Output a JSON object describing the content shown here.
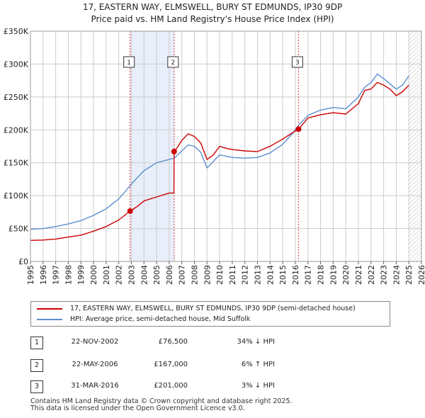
{
  "title_line1": "17, EASTERN WAY, ELMSWELL, BURY ST EDMUNDS, IP30 9DP",
  "title_line2": "Price paid vs. HM Land Registry's House Price Index (HPI)",
  "colors": {
    "property_line": "#cc0000",
    "hpi_line": "#5b8fd0",
    "shade": "#e8eefa",
    "grid": "#cccccc",
    "marker_line": "#dd3333"
  },
  "chart_data": {
    "type": "line",
    "title": "Price paid vs. HM Land Registry's House Price Index (HPI)",
    "xlabel": "",
    "ylabel": "",
    "xlim": [
      1995,
      2026
    ],
    "ylim": [
      0,
      350000
    ],
    "y_ticks": [
      {
        "value": 0,
        "label": "£0"
      },
      {
        "value": 50000,
        "label": "£50K"
      },
      {
        "value": 100000,
        "label": "£100K"
      },
      {
        "value": 150000,
        "label": "£150K"
      },
      {
        "value": 200000,
        "label": "£200K"
      },
      {
        "value": 250000,
        "label": "£250K"
      },
      {
        "value": 300000,
        "label": "£300K"
      },
      {
        "value": 350000,
        "label": "£350K"
      }
    ],
    "x_ticks": [
      "1995",
      "1996",
      "1997",
      "1998",
      "1999",
      "2000",
      "2001",
      "2002",
      "2003",
      "2004",
      "2005",
      "2006",
      "2007",
      "2008",
      "2009",
      "2010",
      "2011",
      "2012",
      "2013",
      "2014",
      "2015",
      "2016",
      "2017",
      "2018",
      "2019",
      "2020",
      "2021",
      "2022",
      "2023",
      "2024",
      "2025",
      "2026"
    ],
    "grid": true,
    "shaded_periods": [
      [
        2002.9,
        2006.4
      ]
    ],
    "future_hatch_from": 2025.0,
    "series": [
      {
        "name": "17, EASTERN WAY, ELMSWELL, BURY ST EDMUNDS, IP30 9DP (semi-detached house)",
        "color": "#cc0000",
        "points": [
          [
            1995.0,
            32000
          ],
          [
            1996.0,
            32500
          ],
          [
            1997.0,
            34000
          ],
          [
            1998.0,
            37000
          ],
          [
            1999.0,
            40000
          ],
          [
            2000.0,
            46000
          ],
          [
            2001.0,
            53000
          ],
          [
            2002.0,
            63000
          ],
          [
            2002.9,
            76500
          ],
          [
            2003.5,
            84000
          ],
          [
            2004.0,
            92000
          ],
          [
            2005.0,
            98000
          ],
          [
            2006.0,
            104000
          ],
          [
            2006.38,
            104000
          ],
          [
            2006.39,
            167000
          ],
          [
            2006.6,
            172000
          ],
          [
            2007.0,
            184000
          ],
          [
            2007.5,
            194000
          ],
          [
            2008.0,
            190000
          ],
          [
            2008.5,
            180000
          ],
          [
            2009.0,
            155000
          ],
          [
            2009.5,
            162000
          ],
          [
            2010.0,
            175000
          ],
          [
            2010.5,
            172000
          ],
          [
            2011.0,
            170000
          ],
          [
            2012.0,
            168000
          ],
          [
            2013.0,
            167000
          ],
          [
            2014.0,
            175000
          ],
          [
            2015.0,
            186000
          ],
          [
            2015.8,
            196000
          ],
          [
            2016.25,
            201000
          ],
          [
            2017.0,
            218000
          ],
          [
            2018.0,
            223000
          ],
          [
            2019.0,
            226000
          ],
          [
            2020.0,
            224000
          ],
          [
            2021.0,
            240000
          ],
          [
            2021.5,
            260000
          ],
          [
            2022.0,
            262000
          ],
          [
            2022.5,
            272000
          ],
          [
            2023.0,
            268000
          ],
          [
            2023.5,
            262000
          ],
          [
            2024.0,
            252000
          ],
          [
            2024.5,
            258000
          ],
          [
            2025.0,
            268000
          ]
        ]
      },
      {
        "name": "HPI: Average price, semi-detached house, Mid Suffolk",
        "color": "#5b8fd0",
        "points": [
          [
            1995.0,
            49000
          ],
          [
            1996.0,
            50000
          ],
          [
            1997.0,
            53000
          ],
          [
            1998.0,
            57000
          ],
          [
            1999.0,
            62000
          ],
          [
            2000.0,
            70000
          ],
          [
            2001.0,
            80000
          ],
          [
            2002.0,
            95000
          ],
          [
            2002.9,
            115000
          ],
          [
            2003.5,
            128000
          ],
          [
            2004.0,
            138000
          ],
          [
            2005.0,
            150000
          ],
          [
            2006.0,
            155000
          ],
          [
            2006.4,
            157000
          ],
          [
            2007.0,
            168000
          ],
          [
            2007.5,
            177000
          ],
          [
            2008.0,
            175000
          ],
          [
            2008.5,
            166000
          ],
          [
            2009.0,
            142000
          ],
          [
            2009.5,
            152000
          ],
          [
            2010.0,
            162000
          ],
          [
            2010.5,
            160000
          ],
          [
            2011.0,
            158000
          ],
          [
            2012.0,
            157000
          ],
          [
            2013.0,
            158000
          ],
          [
            2014.0,
            165000
          ],
          [
            2015.0,
            178000
          ],
          [
            2015.8,
            195000
          ],
          [
            2016.25,
            207000
          ],
          [
            2017.0,
            222000
          ],
          [
            2018.0,
            230000
          ],
          [
            2019.0,
            234000
          ],
          [
            2020.0,
            232000
          ],
          [
            2021.0,
            250000
          ],
          [
            2021.5,
            265000
          ],
          [
            2022.0,
            272000
          ],
          [
            2022.5,
            285000
          ],
          [
            2023.0,
            278000
          ],
          [
            2023.5,
            270000
          ],
          [
            2024.0,
            262000
          ],
          [
            2024.5,
            268000
          ],
          [
            2025.0,
            282000
          ]
        ]
      }
    ],
    "sale_markers": [
      {
        "id": "1",
        "x": 2002.9,
        "y": 76500
      },
      {
        "id": "2",
        "x": 2006.39,
        "y": 167000
      },
      {
        "id": "3",
        "x": 2016.25,
        "y": 201000
      }
    ]
  },
  "legend": {
    "property_label": "17, EASTERN WAY, ELMSWELL, BURY ST EDMUNDS, IP30 9DP (semi-detached house)",
    "hpi_label": "HPI: Average price, semi-detached house, Mid Suffolk"
  },
  "transactions": [
    {
      "num": "1",
      "date": "22-NOV-2002",
      "price": "£76,500",
      "hpi": "34% ↓ HPI"
    },
    {
      "num": "2",
      "date": "22-MAY-2006",
      "price": "£167,000",
      "hpi": "6% ↑ HPI"
    },
    {
      "num": "3",
      "date": "31-MAR-2016",
      "price": "£201,000",
      "hpi": "3% ↓ HPI"
    }
  ],
  "footer": {
    "line1": "Contains HM Land Registry data © Crown copyright and database right 2025.",
    "line2": "This data is licensed under the Open Government Licence v3.0."
  }
}
